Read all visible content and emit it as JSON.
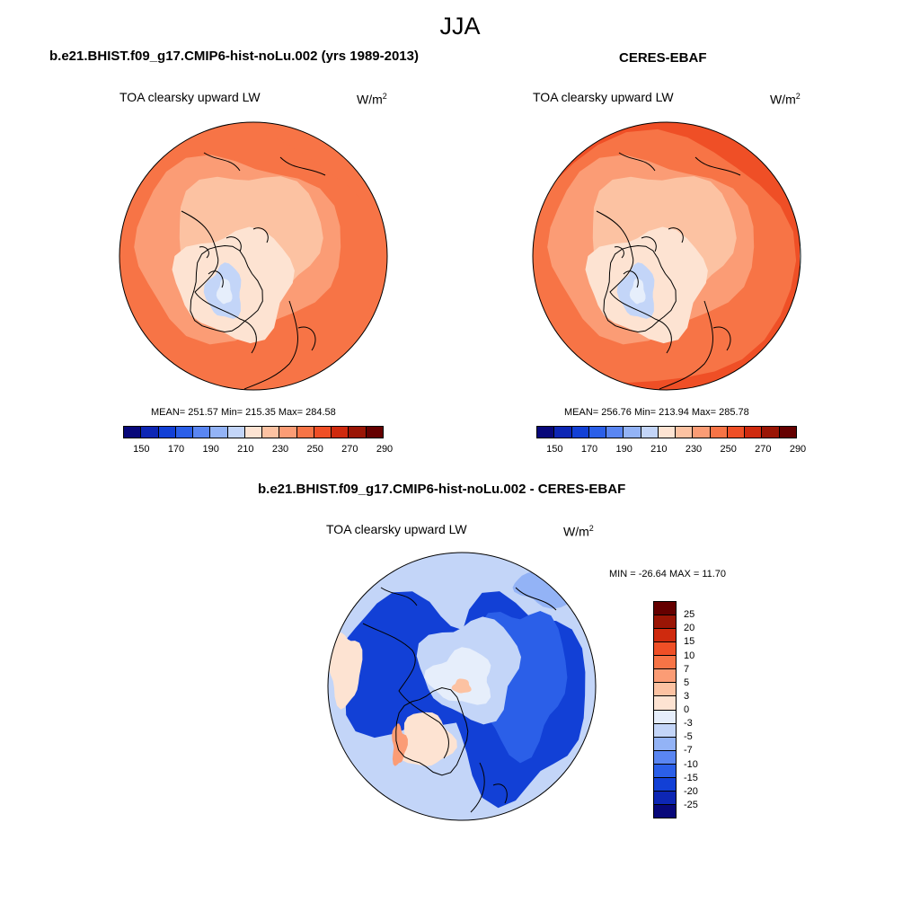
{
  "season": "JJA",
  "colors": {
    "model_ramp": [
      "#08087a",
      "#0d26b4",
      "#1240d6",
      "#2b5fe8",
      "#5a86f2",
      "#93b3f6",
      "#c3d5f8",
      "#fde3d2",
      "#fcc2a2",
      "#fb9c75",
      "#f77446",
      "#ef4f26",
      "#cf2a0e",
      "#9a1505",
      "#650000"
    ],
    "diff_ramp": [
      "#08087a",
      "#0d26b4",
      "#1240d6",
      "#2b5fe8",
      "#5a86f2",
      "#93b3f6",
      "#c3d5f8",
      "#e6eefb",
      "#fde3d2",
      "#fcc2a2",
      "#fb9c75",
      "#f77446",
      "#ef4f26",
      "#cf2a0e",
      "#9a1505",
      "#650000"
    ]
  },
  "panels": {
    "model": {
      "title": "b.e21.BHIST.f09_g17.CMIP6-hist-noLu.002 (yrs 1989-2013)",
      "variable": "TOA clearsky upward LW",
      "unit_base": "W/m",
      "unit_exp": "2",
      "stats": "MEAN= 251.57  Min= 215.35  Max= 284.58",
      "ticks": [
        "150",
        "170",
        "190",
        "210",
        "230",
        "250",
        "270",
        "290"
      ]
    },
    "obs": {
      "title": "CERES-EBAF",
      "variable": "TOA clearsky upward LW",
      "unit_base": "W/m",
      "unit_exp": "2",
      "stats": "MEAN= 256.76  Min= 213.94  Max= 285.78",
      "ticks": [
        "150",
        "170",
        "190",
        "210",
        "230",
        "250",
        "270",
        "290"
      ]
    },
    "diff": {
      "title": "b.e21.BHIST.f09_g17.CMIP6-hist-noLu.002 - CERES-EBAF",
      "variable": "TOA clearsky upward LW",
      "unit_base": "W/m",
      "unit_exp": "2",
      "stats": "MIN = -26.64 MAX =  11.70",
      "ticks": [
        "25",
        "20",
        "15",
        "10",
        "7",
        "5",
        "3",
        "0",
        "-3",
        "-5",
        "-7",
        "-10",
        "-15",
        "-20",
        "-25"
      ]
    }
  }
}
